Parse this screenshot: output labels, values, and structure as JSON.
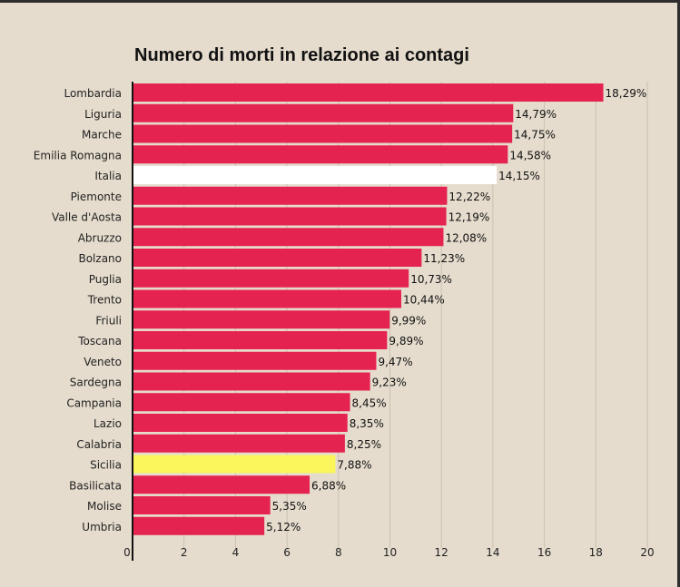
{
  "chart_data": {
    "type": "bar",
    "orientation": "horizontal",
    "title": "Numero di morti in relazione ai contagi",
    "xlabel": "",
    "ylabel": "",
    "xlim": [
      0,
      20
    ],
    "xticks": [
      "0",
      "2",
      "4",
      "6",
      "8",
      "10",
      "12",
      "14",
      "16",
      "18",
      "20"
    ],
    "grid": true,
    "categories": [
      "Lombardia",
      "Liguria",
      "Marche",
      "Emilia Romagna",
      "Italia",
      "Piemonte",
      "Valle d'Aosta",
      "Abruzzo",
      "Bolzano",
      "Puglia",
      "Trento",
      "Friuli",
      "Toscana",
      "Veneto",
      "Sardegna",
      "Campania",
      "Lazio",
      "Calabria",
      "Sicilia",
      "Basilicata",
      "Molise",
      "Umbria"
    ],
    "values": [
      18.29,
      14.79,
      14.75,
      14.58,
      14.15,
      12.22,
      12.19,
      12.08,
      11.23,
      10.73,
      10.44,
      9.99,
      9.89,
      9.47,
      9.23,
      8.45,
      8.35,
      8.25,
      7.88,
      6.88,
      5.35,
      5.12
    ],
    "value_labels": [
      "18,29%",
      "14,79%",
      "14,75%",
      "14,58%",
      "14,15%",
      "12,22%",
      "12,19%",
      "12,08%",
      "11,23%",
      "10,73%",
      "10,44%",
      "9,99%",
      "9,89%",
      "9,47%",
      "9,23%",
      "8,45%",
      "8,35%",
      "8,25%",
      "7,88%",
      "6,88%",
      "5,35%",
      "5,12%"
    ],
    "highlights": {
      "Italia": "#ffffff",
      "Sicilia": "#faf65b"
    },
    "colors": {
      "bar": "#e52350",
      "background": "#e5dccd",
      "grid": "#cbc1b2",
      "axis": "#111111",
      "text": "#222222"
    }
  }
}
